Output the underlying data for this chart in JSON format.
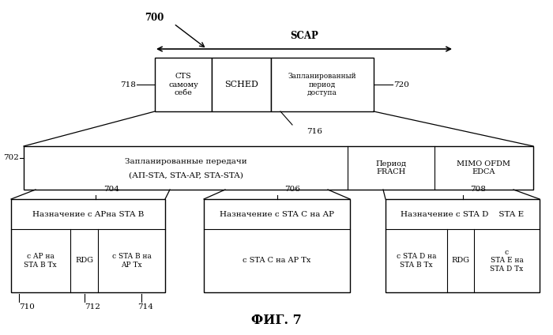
{
  "bg_color": "#ffffff",
  "fig_label": "ФИГ. 7",
  "label_700": "700",
  "label_scap": "SCAP",
  "label_716": "716",
  "label_718": "718",
  "label_720": "720",
  "label_702": "702",
  "label_704": "704",
  "label_706": "706",
  "label_708": "708",
  "label_710": "710",
  "label_712": "712",
  "label_714": "714",
  "box_cts_text": "CTS\nсамому\nсебе",
  "box_sched_text": "SCHED",
  "box_sap_text": "Запланированный\nпериод\nдоступа",
  "box_702_text1": "Запланированные передачи",
  "box_702_text2": "(АП-STA, STA-AP, STA-STA)",
  "box_702_frach": "Период\nFRACH",
  "box_702_mimo": "MIMO OFDM\nEDCA",
  "box_704_title": "Назначение с APна STA B",
  "box_704_left": "с AP на\nSTA B Tx",
  "box_704_rdg": "RDG",
  "box_704_right": "с STA B на\nAP Tx",
  "box_706_title": "Назначение с STA C на AP",
  "box_706_content": "с STA C на AP Tx",
  "box_708_title": "Назначение с STA D    STA E",
  "box_708_left": "с STA D на\nSTA B Tx",
  "box_708_rdg": "RDG",
  "box_708_right": "с\nSTA E на\nSTA D Tx"
}
